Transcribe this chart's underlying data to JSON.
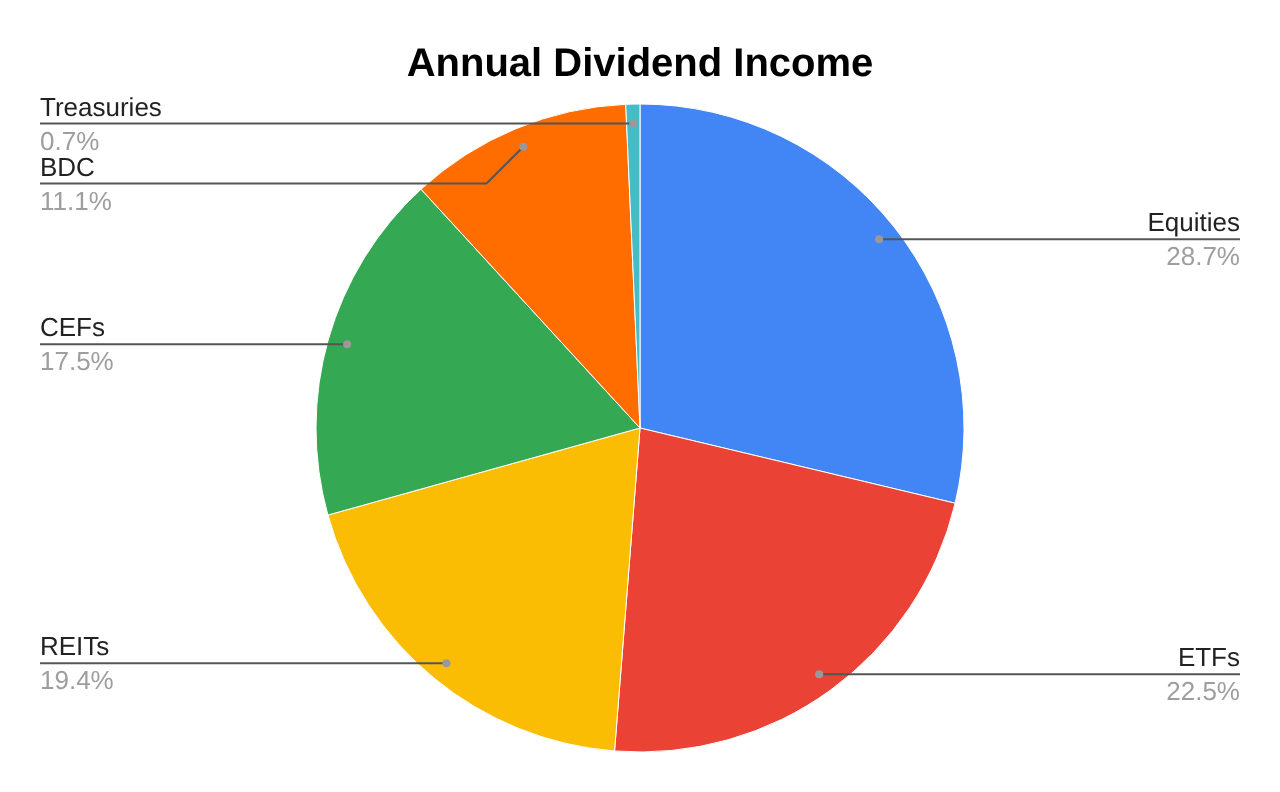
{
  "chart_data": {
    "type": "pie",
    "title": "Annual Dividend Income",
    "categories": [
      "Equities",
      "ETFs",
      "REITs",
      "CEFs",
      "BDC",
      "Treasuries"
    ],
    "values": [
      28.7,
      22.5,
      19.4,
      17.5,
      11.1,
      0.7
    ],
    "value_labels": [
      "28.7%",
      "22.5%",
      "19.4%",
      "17.5%",
      "11.1%",
      "0.7%"
    ],
    "colors": [
      "#4285f4",
      "#ea4335",
      "#fbbc04",
      "#34a853",
      "#ff6d01",
      "#46bdc6"
    ]
  }
}
